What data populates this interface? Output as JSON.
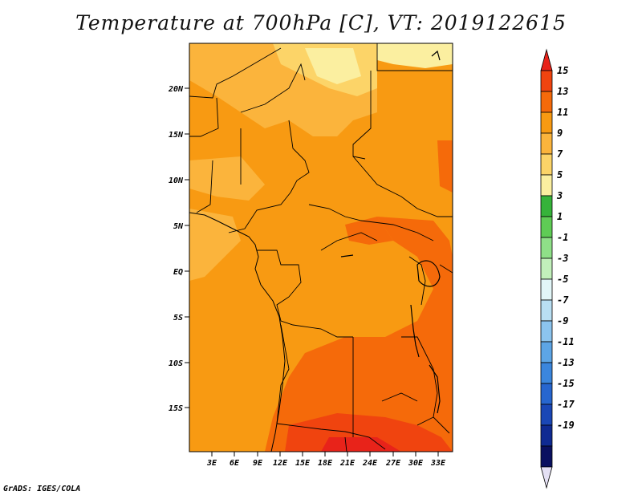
{
  "title": "Temperature at 700hPa [C], VT: 2019122615",
  "footer": "GrADS: IGES/COLA",
  "map": {
    "lat_labels": [
      "20N",
      "15N",
      "10N",
      "5N",
      "EQ",
      "5S",
      "10S",
      "15S"
    ],
    "lon_labels": [
      "3E",
      "6E",
      "9E",
      "12E",
      "15E",
      "18E",
      "21E",
      "24E",
      "27E",
      "30E",
      "33E"
    ]
  },
  "colorbar": {
    "labels": [
      "15",
      "13",
      "11",
      "9",
      "7",
      "5",
      "3",
      "1",
      "-1",
      "-3",
      "-5",
      "-7",
      "-9",
      "-11",
      "-13",
      "-15",
      "-17",
      "-19"
    ],
    "colors": [
      "#e8231a",
      "#f0440f",
      "#f56a0a",
      "#f89a12",
      "#fbb43c",
      "#fcd468",
      "#fbefa0",
      "#36b33a",
      "#5fcc55",
      "#8fe088",
      "#c2f0bb",
      "#e2f6f8",
      "#b9dff3",
      "#8cc4ee",
      "#5da5e6",
      "#3b86dd",
      "#2766cf",
      "#1a47b6",
      "#0f2a92",
      "#0a1060",
      "#e4e0f4"
    ]
  }
}
